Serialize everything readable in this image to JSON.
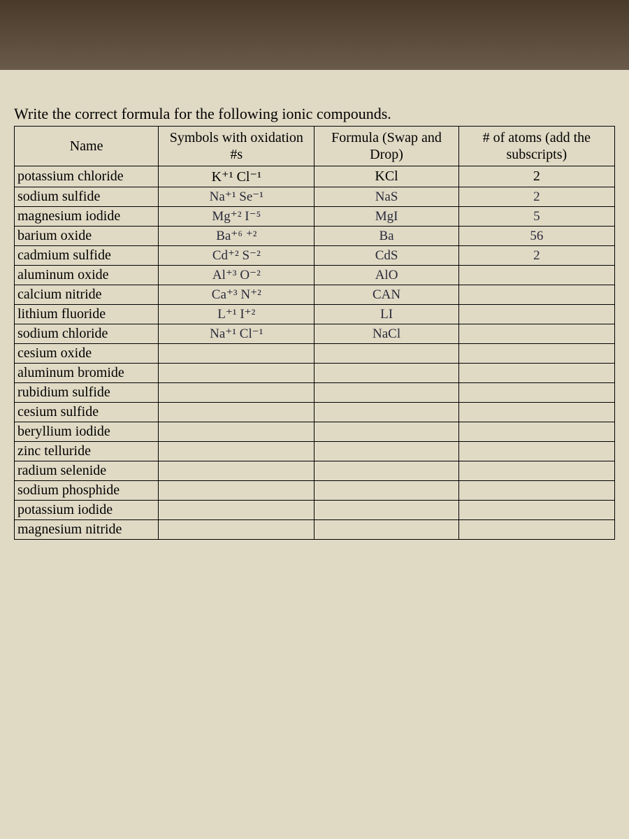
{
  "instruction": "Write the correct formula for the following ionic compounds.",
  "headers": {
    "name": "Name",
    "symbols": "Symbols with oxidation #s",
    "formula": "Formula (Swap and Drop)",
    "atoms": "# of atoms (add the subscripts)"
  },
  "table": {
    "type": "table",
    "background_color": "#e0dac5",
    "border_color": "#000000",
    "printed_font": "Times New Roman",
    "handwritten_font": "Comic Sans MS",
    "printed_fontsize": 20,
    "handwritten_color": "#2a2a3a",
    "columns": [
      {
        "key": "name",
        "label": "Name",
        "align": "left"
      },
      {
        "key": "symbols",
        "label": "Symbols with oxidation #s",
        "align": "center"
      },
      {
        "key": "formula",
        "label": "Formula (Swap and Drop)",
        "align": "center"
      },
      {
        "key": "atoms",
        "label": "# of atoms (add the subscripts)",
        "align": "center"
      }
    ],
    "rows": [
      {
        "name": "potassium chloride",
        "symbols": "K⁺¹ Cl⁻¹",
        "symbols_printed": true,
        "formula": "KCl",
        "formula_printed": true,
        "atoms": "2",
        "atoms_printed": true
      },
      {
        "name": "sodium sulfide",
        "symbols": "Na⁺¹ Se⁻¹",
        "formula": "NaS",
        "atoms": "2"
      },
      {
        "name": "magnesium iodide",
        "symbols": "Mg⁺² I⁻⁵",
        "formula": "MgI",
        "atoms": "5"
      },
      {
        "name": "barium oxide",
        "symbols": "Ba⁺⁶ ⁺²",
        "formula": "Ba",
        "atoms": "56"
      },
      {
        "name": "cadmium sulfide",
        "symbols": "Cd⁺² S⁻²",
        "formula": "CdS",
        "atoms": "2"
      },
      {
        "name": "aluminum oxide",
        "symbols": "Al⁺³ O⁻²",
        "formula": "AlO",
        "atoms": ""
      },
      {
        "name": "calcium nitride",
        "symbols": "Ca⁺³ N⁺²",
        "formula": "CAN",
        "atoms": ""
      },
      {
        "name": "lithium fluoride",
        "symbols": "L⁺¹ I⁺²",
        "formula": "LI",
        "atoms": ""
      },
      {
        "name": "sodium chloride",
        "symbols": "Na⁺¹ Cl⁻¹",
        "formula": "NaCl",
        "atoms": ""
      },
      {
        "name": "cesium oxide",
        "symbols": "",
        "formula": "",
        "atoms": ""
      },
      {
        "name": "aluminum bromide",
        "symbols": "",
        "formula": "",
        "atoms": ""
      },
      {
        "name": "rubidium sulfide",
        "symbols": "",
        "formula": "",
        "atoms": ""
      },
      {
        "name": "cesium sulfide",
        "symbols": "",
        "formula": "",
        "atoms": ""
      },
      {
        "name": "beryllium iodide",
        "symbols": "",
        "formula": "",
        "atoms": ""
      },
      {
        "name": "zinc telluride",
        "symbols": "",
        "formula": "",
        "atoms": ""
      },
      {
        "name": "radium selenide",
        "symbols": "",
        "formula": "",
        "atoms": ""
      },
      {
        "name": "sodium phosphide",
        "symbols": "",
        "formula": "",
        "atoms": ""
      },
      {
        "name": "potassium iodide",
        "symbols": "",
        "formula": "",
        "atoms": ""
      },
      {
        "name": "magnesium nitride",
        "symbols": "",
        "formula": "",
        "atoms": ""
      }
    ]
  }
}
